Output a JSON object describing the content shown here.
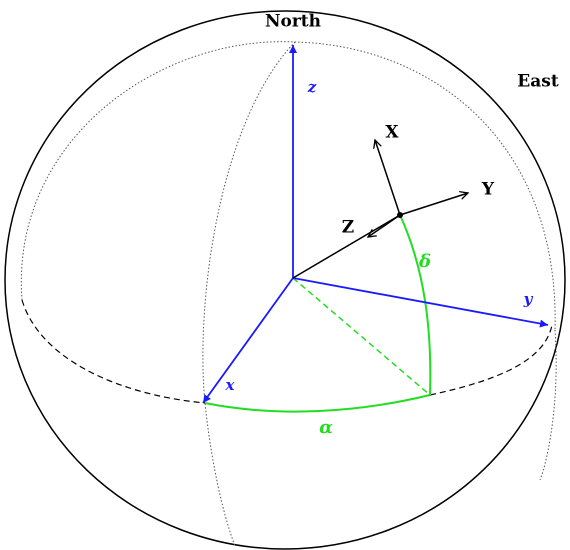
{
  "labels": {
    "north": "North",
    "east": "East",
    "x_body": "X",
    "y_body": "Y",
    "z_body": "Z",
    "z_axis": "z",
    "y_axis": "y",
    "x_axis": "x",
    "delta": "δ",
    "alpha": "α"
  }
}
